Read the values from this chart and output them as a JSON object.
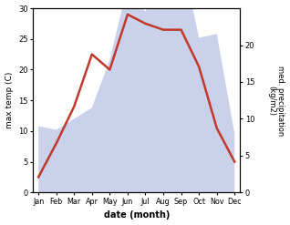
{
  "months": [
    "Jan",
    "Feb",
    "Mar",
    "Apr",
    "May",
    "Jun",
    "Jul",
    "Aug",
    "Sep",
    "Oct",
    "Nov",
    "Dec"
  ],
  "max_temp": [
    2.5,
    8.0,
    14.0,
    22.5,
    20.0,
    29.0,
    27.5,
    26.5,
    26.5,
    20.5,
    10.5,
    5.0
  ],
  "precipitation": [
    9.0,
    8.5,
    10.0,
    11.5,
    18.0,
    28.0,
    24.5,
    32.0,
    32.5,
    21.0,
    21.5,
    8.0
  ],
  "temp_color": "#c0392b",
  "precip_fill_color": "#c5cce8",
  "precip_fill_alpha": 0.9,
  "ylabel_left": "max temp (C)",
  "ylabel_right": "med. precipitation\n(kg/m2)",
  "xlabel": "date (month)",
  "ylim_left": [
    0,
    30
  ],
  "ylim_right": [
    0,
    25
  ],
  "left_yticks": [
    0,
    5,
    10,
    15,
    20,
    25,
    30
  ],
  "right_yticks": [
    0,
    5,
    10,
    15,
    20
  ],
  "background_color": "#ffffff"
}
